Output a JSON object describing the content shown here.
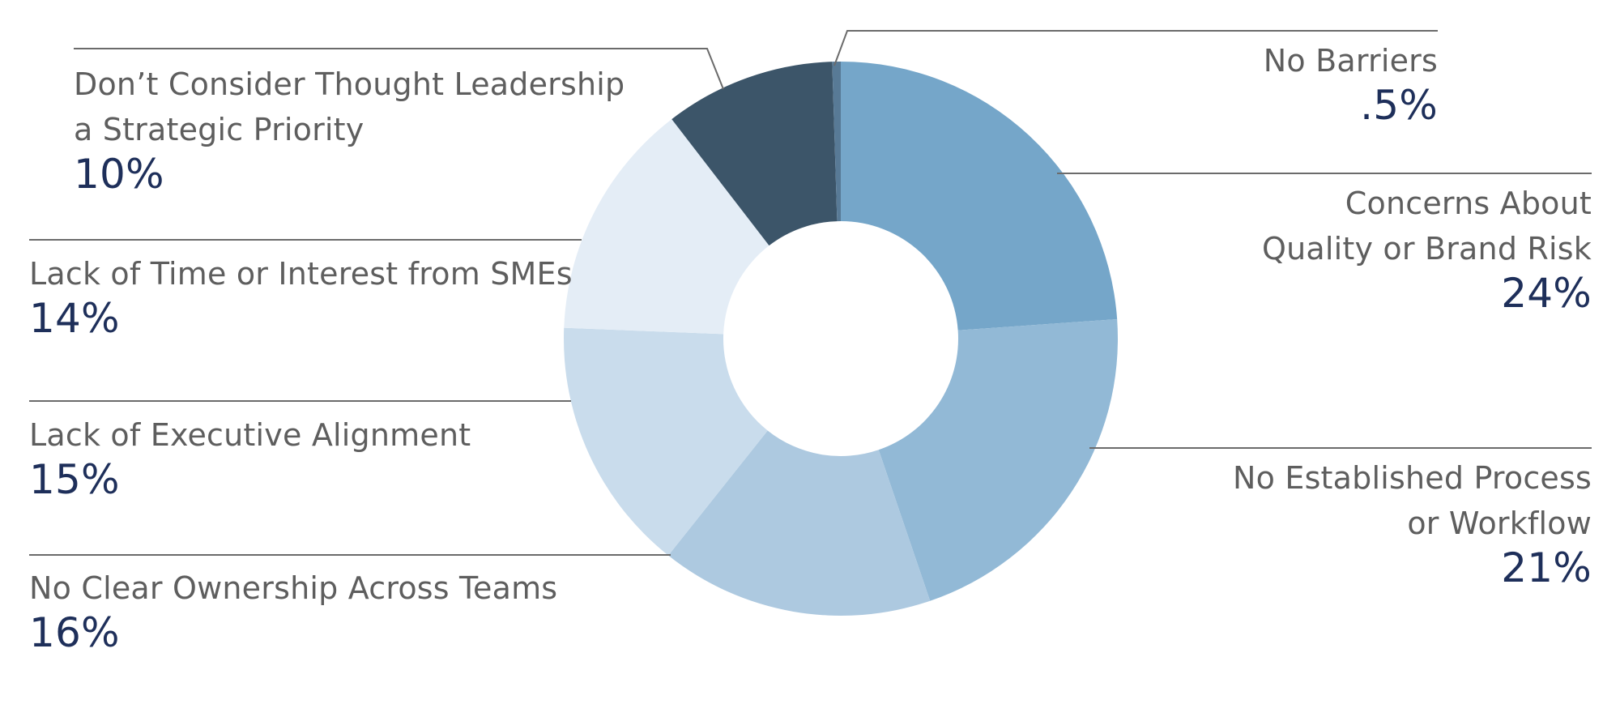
{
  "chart_data": {
    "type": "pie",
    "donut": true,
    "start_angle_deg": 0,
    "direction": "clockwise",
    "slices": [
      {
        "label": "Concerns About\nQuality or Brand Risk",
        "value": 24,
        "display": "24%",
        "color": "#75a6c9"
      },
      {
        "label": "No Established Process\nor Workflow",
        "value": 21,
        "display": "21%",
        "color": "#92b9d6"
      },
      {
        "label": "No Clear Ownership Across Teams",
        "value": 16,
        "display": "16%",
        "color": "#adc9e0"
      },
      {
        "label": "Lack of Executive Alignment",
        "value": 15,
        "display": "15%",
        "color": "#c9dcec"
      },
      {
        "label": "Lack of Time or Interest from SMEs",
        "value": 14,
        "display": "14%",
        "color": "#e4edf6"
      },
      {
        "label": "Don’t Consider Thought Leadership\na Strategic Priority",
        "value": 10,
        "display": "10%",
        "color": "#3c5569"
      },
      {
        "label": "No Barriers",
        "value": 0.5,
        "display": ".5%",
        "color": "#587a96"
      }
    ]
  },
  "colors": {
    "label_text": "#5e5e5e",
    "percent_text": "#1e2f5a",
    "leader_line": "#6b6b6b"
  }
}
